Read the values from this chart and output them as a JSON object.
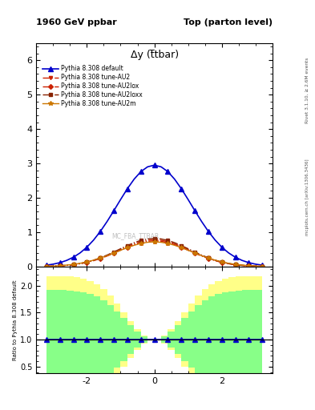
{
  "title_left": "1960 GeV ppbar",
  "title_right": "Top (parton level)",
  "plot_title": "Δy (t̅tbar)",
  "ylabel_ratio": "Ratio to Pythia 8.308 default",
  "right_label_top": "Rivet 3.1.10, ≥ 2.6M events",
  "right_label_bottom": "mcplots.cern.ch [arXiv:1306.3436]",
  "watermark": "MC_FBA_TTBAR",
  "xlim": [
    -3.5,
    3.5
  ],
  "ylim_main": [
    0,
    6.5
  ],
  "ylim_ratio": [
    0.38,
    2.35
  ],
  "x_ticks": [
    -2,
    0,
    2
  ],
  "y_ticks_main": [
    0,
    1,
    2,
    3,
    4,
    5,
    6
  ],
  "y_ticks_ratio": [
    0.5,
    1.0,
    1.5,
    2.0
  ],
  "background_color": "#ffffff",
  "series": [
    {
      "label": "Pythia 8.308 default",
      "color": "#0000cc",
      "marker": "^",
      "linestyle": "-",
      "linewidth": 1.2,
      "markersize": 4
    },
    {
      "label": "Pythia 8.308 tune-AU2",
      "color": "#cc2200",
      "marker": "v",
      "linestyle": "-.",
      "linewidth": 1.0,
      "markersize": 3
    },
    {
      "label": "Pythia 8.308 tune-AU2lox",
      "color": "#cc2200",
      "marker": "D",
      "linestyle": "-.",
      "linewidth": 1.0,
      "markersize": 3
    },
    {
      "label": "Pythia 8.308 tune-AU2loxx",
      "color": "#882200",
      "marker": "s",
      "linestyle": "-.",
      "linewidth": 1.0,
      "markersize": 3
    },
    {
      "label": "Pythia 8.308 tune-AU2m",
      "color": "#cc7700",
      "marker": "*",
      "linestyle": "-",
      "linewidth": 1.0,
      "markersize": 4
    }
  ],
  "ratio_band_yellow": "#ffff88",
  "ratio_band_green": "#88ff88",
  "sigma_main": 1.1,
  "amp_main": 2.95,
  "sigma_other": 1.05,
  "amp_other": 0.78
}
